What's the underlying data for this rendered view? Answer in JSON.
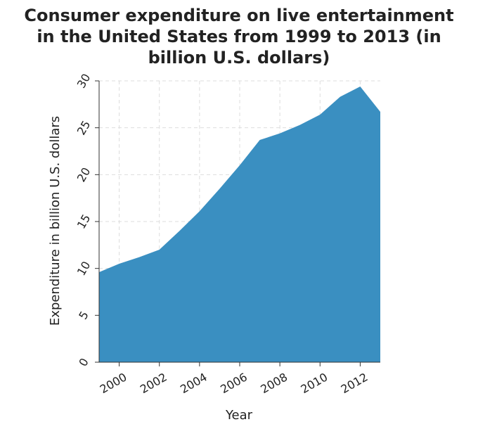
{
  "chart_data": {
    "type": "area",
    "title_lines": [
      "Consumer expenditure on live entertainment",
      "in the United States from 1999 to 2013 (in",
      "billion U.S. dollars)"
    ],
    "xlabel": "Year",
    "ylabel": "Expenditure in billion U.S. dollars",
    "x": [
      1999,
      2000,
      2001,
      2002,
      2003,
      2004,
      2005,
      2006,
      2007,
      2008,
      2009,
      2010,
      2011,
      2012,
      2013
    ],
    "series": [
      {
        "values": [
          9.6,
          10.5,
          11.2,
          12.0,
          14.0,
          16.1,
          18.5,
          21.0,
          23.7,
          24.4,
          25.3,
          26.4,
          28.3,
          29.4,
          26.7
        ]
      }
    ],
    "xlim": [
      1999,
      2013
    ],
    "ylim": [
      0,
      30
    ],
    "x_ticks": [
      "2000",
      "2002",
      "2004",
      "2006",
      "2008",
      "2010",
      "2012"
    ],
    "y_ticks": [
      "0",
      "5",
      "10",
      "15",
      "20",
      "25",
      "30"
    ],
    "grid": true,
    "colors": {
      "fill": "#3a8fc1",
      "axis": "#333333",
      "grid": "#dddddd"
    }
  }
}
